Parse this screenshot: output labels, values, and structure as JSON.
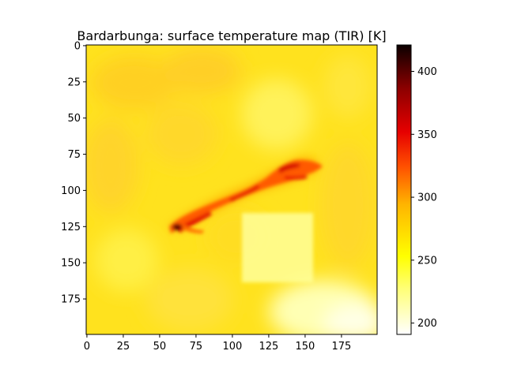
{
  "chart_data": {
    "type": "heatmap",
    "title": "Bardarbunga: surface temperature map (TIR) [K]",
    "xlabel": "",
    "ylabel": "",
    "grid": false,
    "x_range": [
      0,
      199
    ],
    "y_range": [
      199,
      0
    ],
    "x_ticks": [
      0,
      25,
      50,
      75,
      100,
      125,
      150,
      175
    ],
    "y_ticks": [
      0,
      25,
      50,
      75,
      100,
      125,
      150,
      175
    ],
    "colormap": "hot_r",
    "colorbar": {
      "range": [
        191,
        421
      ],
      "ticks": [
        200,
        250,
        300,
        350,
        400
      ]
    },
    "background_temperature_K": 250,
    "regions": [
      {
        "label": "lava flow / fissure",
        "from": [
          60,
          127
        ],
        "to": [
          162,
          83
        ],
        "max_temperature_K": 421
      },
      {
        "label": "warm streak",
        "from": [
          60,
          127
        ],
        "to": [
          80,
          120
        ],
        "max_temperature_K": 400
      },
      {
        "label": "cool patch",
        "x": [
          107,
          157
        ],
        "y": [
          116,
          163
        ],
        "temperature_K": 228
      },
      {
        "label": "cool area",
        "x": [
          130,
          199
        ],
        "y": [
          160,
          199
        ],
        "temperature_K": 215
      }
    ]
  }
}
